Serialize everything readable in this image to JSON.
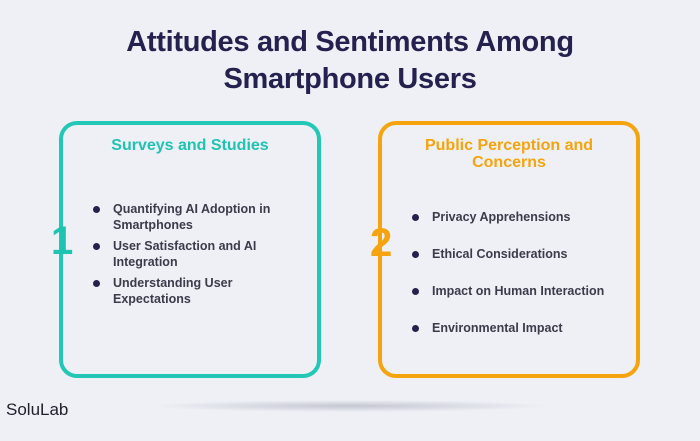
{
  "title_line1": "Attitudes and Sentiments Among",
  "title_line2": "Smartphone Users",
  "cards": [
    {
      "number": "1",
      "title": "Surveys and Studies",
      "items": [
        "Quantifying AI Adoption in Smartphones",
        "User Satisfaction and AI Integration",
        "Understanding User Expectations"
      ]
    },
    {
      "number": "2",
      "title_line1": "Public Perception and",
      "title_line2": "Concerns",
      "items": [
        "Privacy Apprehensions",
        "Ethical Considerations",
        "Impact on Human Interaction",
        "Environmental Impact"
      ]
    }
  ],
  "brand": "SoluLab",
  "colors": {
    "title": "#25214f",
    "teal": "#1fc3b2",
    "orange": "#f5a40d",
    "background": "#eef0f6"
  }
}
